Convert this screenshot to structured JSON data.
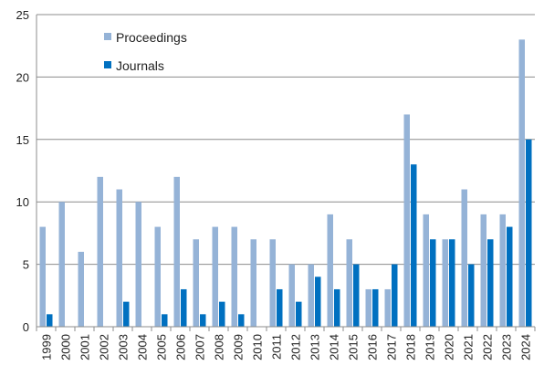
{
  "chart_data": {
    "type": "bar",
    "title": "",
    "xlabel": "",
    "ylabel": "",
    "ylim": [
      0,
      25
    ],
    "yticks": [
      0,
      5,
      10,
      15,
      20,
      25
    ],
    "grid": "horizontal",
    "legend_position": "top-left",
    "categories": [
      "1999",
      "2000",
      "2001",
      "2002",
      "2003",
      "2004",
      "2005",
      "2006",
      "2007",
      "2008",
      "2009",
      "2010",
      "2011",
      "2012",
      "2013",
      "2014",
      "2015",
      "2016",
      "2017",
      "2018",
      "2019",
      "2020",
      "2021",
      "2022",
      "2023",
      "2024"
    ],
    "series": [
      {
        "name": "Proceedings",
        "color": "#95B3D7",
        "values": [
          8,
          10,
          6,
          12,
          11,
          10,
          8,
          12,
          7,
          8,
          8,
          7,
          7,
          5,
          5,
          9,
          7,
          3,
          3,
          17,
          9,
          7,
          11,
          9,
          9,
          23
        ]
      },
      {
        "name": "Journals",
        "color": "#0070C0",
        "values": [
          1,
          0,
          0,
          0,
          2,
          0,
          1,
          3,
          1,
          2,
          1,
          0,
          3,
          2,
          4,
          3,
          5,
          3,
          5,
          13,
          7,
          7,
          5,
          7,
          8,
          15
        ]
      }
    ]
  }
}
